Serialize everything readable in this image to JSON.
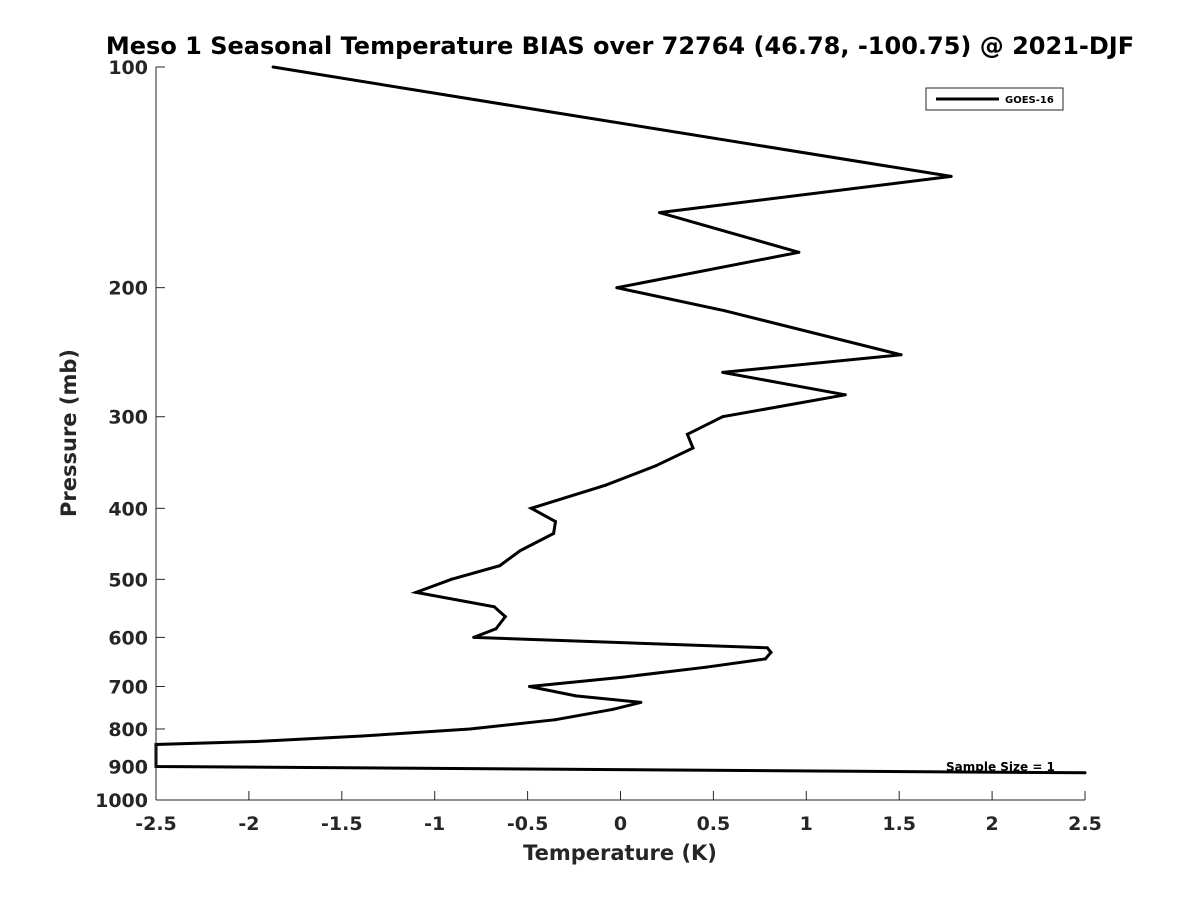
{
  "chart_data": {
    "type": "line",
    "title": "Meso 1 Seasonal Temperature BIAS over 72764 (46.78, -100.75) @ 2021-DJF",
    "xlabel": "Temperature (K)",
    "ylabel": "Pressure (mb)",
    "xlim": [
      -2.5,
      2.5
    ],
    "ylim": [
      100,
      1000
    ],
    "yscale": "log",
    "yreversed": true,
    "xticks": [
      -2.5,
      -2,
      -1.5,
      -1,
      -0.5,
      0,
      0.5,
      1,
      1.5,
      2,
      2.5
    ],
    "xtick_labels": [
      "-2.5",
      "-2",
      "-1.5",
      "-1",
      "-0.5",
      "0",
      "0.5",
      "1",
      "1.5",
      "2",
      "2.5"
    ],
    "yticks": [
      100,
      200,
      300,
      400,
      500,
      600,
      700,
      800,
      900,
      1000
    ],
    "ytick_labels": [
      "100",
      "200",
      "300",
      "400",
      "500",
      "600",
      "700",
      "800",
      "900",
      "1000"
    ],
    "grid": false,
    "legend_position": "top-right",
    "series": [
      {
        "name": "GOES-16",
        "color": "#000000",
        "points": [
          {
            "x": -1.87,
            "p": 100
          },
          {
            "x": -0.39,
            "p": 115
          },
          {
            "x": 1.78,
            "p": 141
          },
          {
            "x": 0.21,
            "p": 158
          },
          {
            "x": 0.96,
            "p": 179
          },
          {
            "x": -0.02,
            "p": 200
          },
          {
            "x": 0.56,
            "p": 215
          },
          {
            "x": 1.51,
            "p": 247
          },
          {
            "x": 0.55,
            "p": 261
          },
          {
            "x": 1.21,
            "p": 280
          },
          {
            "x": 0.55,
            "p": 300
          },
          {
            "x": 0.36,
            "p": 317
          },
          {
            "x": 0.39,
            "p": 331
          },
          {
            "x": 0.19,
            "p": 350
          },
          {
            "x": -0.08,
            "p": 372
          },
          {
            "x": -0.48,
            "p": 400
          },
          {
            "x": -0.35,
            "p": 417
          },
          {
            "x": -0.36,
            "p": 433
          },
          {
            "x": -0.54,
            "p": 457
          },
          {
            "x": -0.65,
            "p": 479
          },
          {
            "x": -0.91,
            "p": 500
          },
          {
            "x": -1.1,
            "p": 521
          },
          {
            "x": -0.68,
            "p": 545
          },
          {
            "x": -0.62,
            "p": 562
          },
          {
            "x": -0.67,
            "p": 584
          },
          {
            "x": -0.79,
            "p": 600
          },
          {
            "x": 0.79,
            "p": 620
          },
          {
            "x": 0.81,
            "p": 629
          },
          {
            "x": 0.78,
            "p": 642
          },
          {
            "x": 0.46,
            "p": 659
          },
          {
            "x": 0.01,
            "p": 680
          },
          {
            "x": -0.49,
            "p": 700
          },
          {
            "x": -0.24,
            "p": 721
          },
          {
            "x": 0.11,
            "p": 736
          },
          {
            "x": -0.04,
            "p": 752
          },
          {
            "x": -0.35,
            "p": 777
          },
          {
            "x": -0.81,
            "p": 800
          },
          {
            "x": -1.39,
            "p": 818
          },
          {
            "x": -1.96,
            "p": 832
          },
          {
            "x": -2.5,
            "p": 840
          },
          {
            "x": -2.5,
            "p": 900
          },
          {
            "x": 2.5,
            "p": 918
          }
        ]
      }
    ],
    "annotations": [
      {
        "text": "Sample Size = 1",
        "x": 2.0,
        "p": 900
      }
    ]
  }
}
